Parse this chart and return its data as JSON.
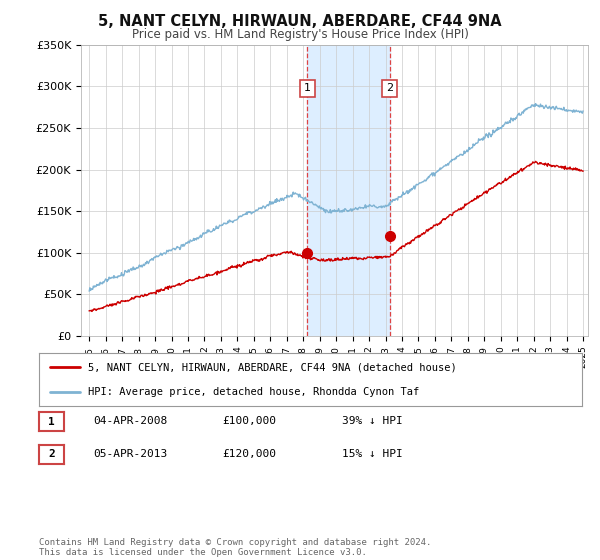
{
  "title": "5, NANT CELYN, HIRWAUN, ABERDARE, CF44 9NA",
  "subtitle": "Price paid vs. HM Land Registry's House Price Index (HPI)",
  "ylim": [
    0,
    350000
  ],
  "yticks": [
    0,
    50000,
    100000,
    150000,
    200000,
    250000,
    300000,
    350000
  ],
  "ytick_labels": [
    "£0",
    "£50K",
    "£100K",
    "£150K",
    "£200K",
    "£250K",
    "£300K",
    "£350K"
  ],
  "x_start_year": 1995,
  "x_end_year": 2025,
  "hpi_color": "#7fb3d3",
  "price_color": "#cc0000",
  "shade_color": "#ddeeff",
  "sale1_year": 2008.25,
  "sale1_price": 100000,
  "sale2_year": 2013.25,
  "sale2_price": 120000,
  "sale1_label": "1",
  "sale2_label": "2",
  "legend_line1": "5, NANT CELYN, HIRWAUN, ABERDARE, CF44 9NA (detached house)",
  "legend_line2": "HPI: Average price, detached house, Rhondda Cynon Taf",
  "table_row1_num": "1",
  "table_row1_date": "04-APR-2008",
  "table_row1_price": "£100,000",
  "table_row1_hpi": "39% ↓ HPI",
  "table_row2_num": "2",
  "table_row2_date": "05-APR-2013",
  "table_row2_price": "£120,000",
  "table_row2_hpi": "15% ↓ HPI",
  "footer": "Contains HM Land Registry data © Crown copyright and database right 2024.\nThis data is licensed under the Open Government Licence v3.0.",
  "background_color": "#ffffff",
  "grid_color": "#cccccc",
  "title_fontsize": 10.5,
  "subtitle_fontsize": 8.5
}
